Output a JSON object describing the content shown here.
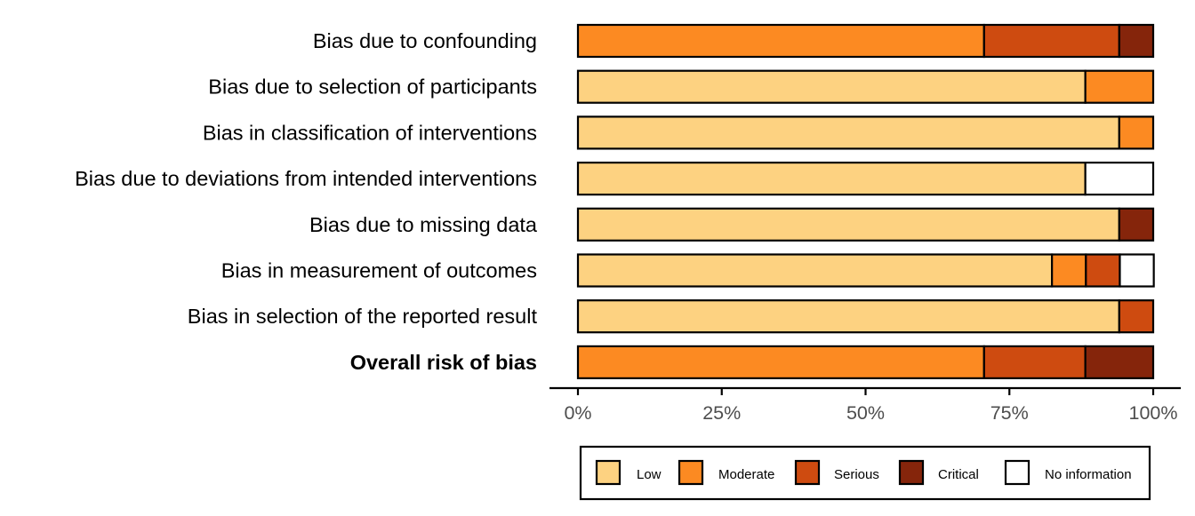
{
  "chart_data": {
    "type": "bar",
    "orientation": "horizontal",
    "stacked": true,
    "percent": true,
    "categories": [
      "Bias due to confounding",
      "Bias due to selection of participants",
      "Bias in classification of interventions",
      "Bias due to deviations from intended interventions",
      "Bias due to missing data",
      "Bias in measurement of outcomes",
      "Bias in selection of the reported result",
      "Overall risk of bias"
    ],
    "bold_categories": [
      "Overall risk of bias"
    ],
    "series": [
      {
        "name": "Low",
        "color": "#FDD281",
        "values": [
          0,
          88.2,
          94.1,
          88.2,
          94.1,
          82.4,
          94.1,
          0
        ]
      },
      {
        "name": "Moderate",
        "color": "#FC8A22",
        "values": [
          70.6,
          11.8,
          5.9,
          0,
          0,
          5.9,
          0,
          70.6
        ]
      },
      {
        "name": "Serious",
        "color": "#CE4B10",
        "values": [
          23.5,
          0,
          0,
          0,
          0,
          5.9,
          5.9,
          17.6
        ]
      },
      {
        "name": "Critical",
        "color": "#85250B",
        "values": [
          5.9,
          0,
          0,
          0,
          5.9,
          0,
          0,
          11.8
        ]
      },
      {
        "name": "No information",
        "color": "#FFFFFF",
        "values": [
          0,
          0,
          0,
          11.8,
          0,
          5.9,
          0,
          0
        ]
      }
    ],
    "xlim": [
      0,
      100
    ],
    "x_ticks": [
      "0%",
      "25%",
      "50%",
      "75%",
      "100%"
    ],
    "x_tick_values": [
      0,
      25,
      50,
      75,
      100
    ],
    "xlabel": "",
    "ylabel": "",
    "title": "",
    "grid": false,
    "legend_position": "bottom"
  }
}
